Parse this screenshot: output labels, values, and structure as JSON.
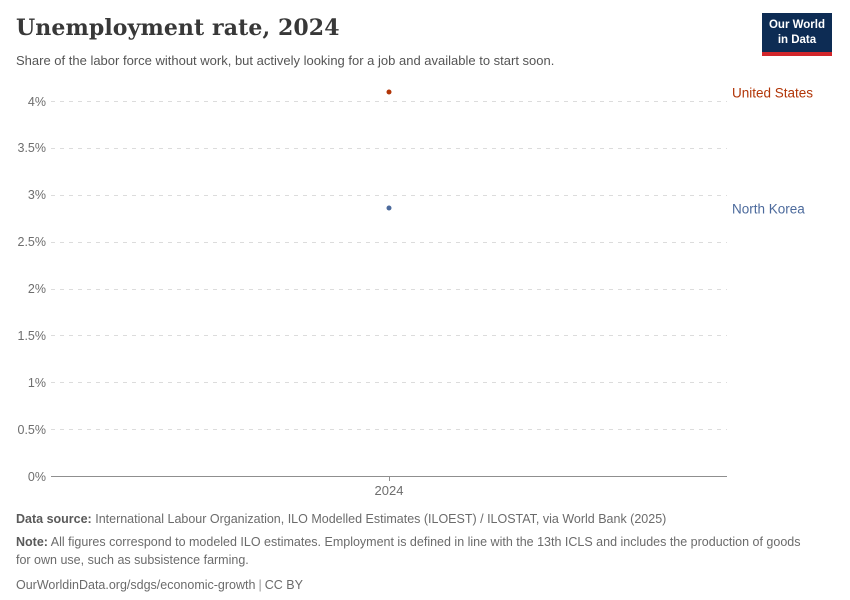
{
  "header": {
    "title": "Unemployment rate, 2024",
    "subtitle": "Share of the labor force without work, but actively looking for a job and available to start soon.",
    "logo_line1": "Our World",
    "logo_line2": "in Data"
  },
  "chart_data": {
    "type": "scatter",
    "title": "Unemployment rate, 2024",
    "x": [
      2024
    ],
    "x_tick_labels": [
      "2024"
    ],
    "series": [
      {
        "name": "United States",
        "values": [
          4.1
        ],
        "color": "#b13507"
      },
      {
        "name": "North Korea",
        "values": [
          2.86
        ],
        "color": "#4c6a9c"
      }
    ],
    "y_ticks": [
      {
        "label": "0%",
        "value": 0
      },
      {
        "label": "0.5%",
        "value": 0.5
      },
      {
        "label": "1%",
        "value": 1
      },
      {
        "label": "1.5%",
        "value": 1.5
      },
      {
        "label": "2%",
        "value": 2
      },
      {
        "label": "2.5%",
        "value": 2.5
      },
      {
        "label": "3%",
        "value": 3
      },
      {
        "label": "3.5%",
        "value": 3.5
      },
      {
        "label": "4%",
        "value": 4
      }
    ],
    "ylim": [
      0,
      4.2
    ],
    "grid": "horizontal-dashed",
    "legend_position": "right-of-points"
  },
  "footer": {
    "data_source_label": "Data source:",
    "data_source": "International Labour Organization, ILO Modelled Estimates (ILOEST) / ILOSTAT, via World Bank (2025)",
    "note_label": "Note:",
    "note": "All figures correspond to modeled ILO estimates. Employment is defined in line with the 13th ICLS and includes the production of goods for own use, such as subsistence farming.",
    "url": "OurWorldinData.org/sdgs/economic-growth",
    "separator": "|",
    "license": "CC BY"
  },
  "colors": {
    "united_states": "#b13507",
    "north_korea": "#4c6a9c",
    "logo_bg": "#0d2c54",
    "logo_accent": "#d2262b",
    "gridline": "#dcdcdc",
    "axis": "#8f8f8f"
  }
}
